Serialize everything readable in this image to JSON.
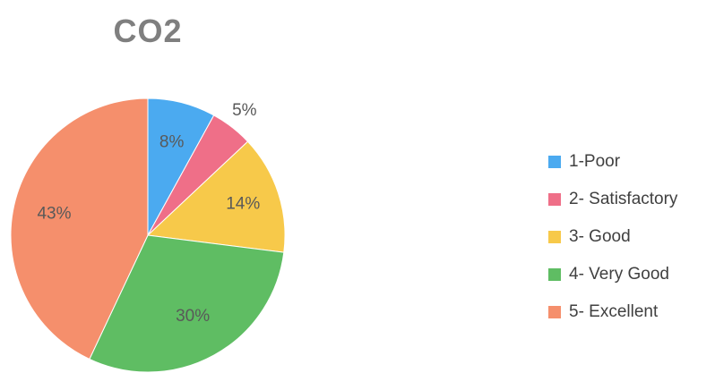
{
  "chart_data": {
    "type": "pie",
    "title": "CO2",
    "categories": [
      "1-Poor",
      "2- Satisfactory",
      "3- Good",
      "4- Very Good",
      "5- Excellent"
    ],
    "values": [
      8,
      5,
      14,
      30,
      43
    ],
    "labels": [
      "8%",
      "5%",
      "14%",
      "30%",
      "43%"
    ],
    "colors": [
      "#4baaf0",
      "#ef6f88",
      "#f7c94a",
      "#5fbd63",
      "#f58f6c"
    ],
    "legend_position": "right",
    "start_angle_deg": 0,
    "direction": "clockwise"
  }
}
